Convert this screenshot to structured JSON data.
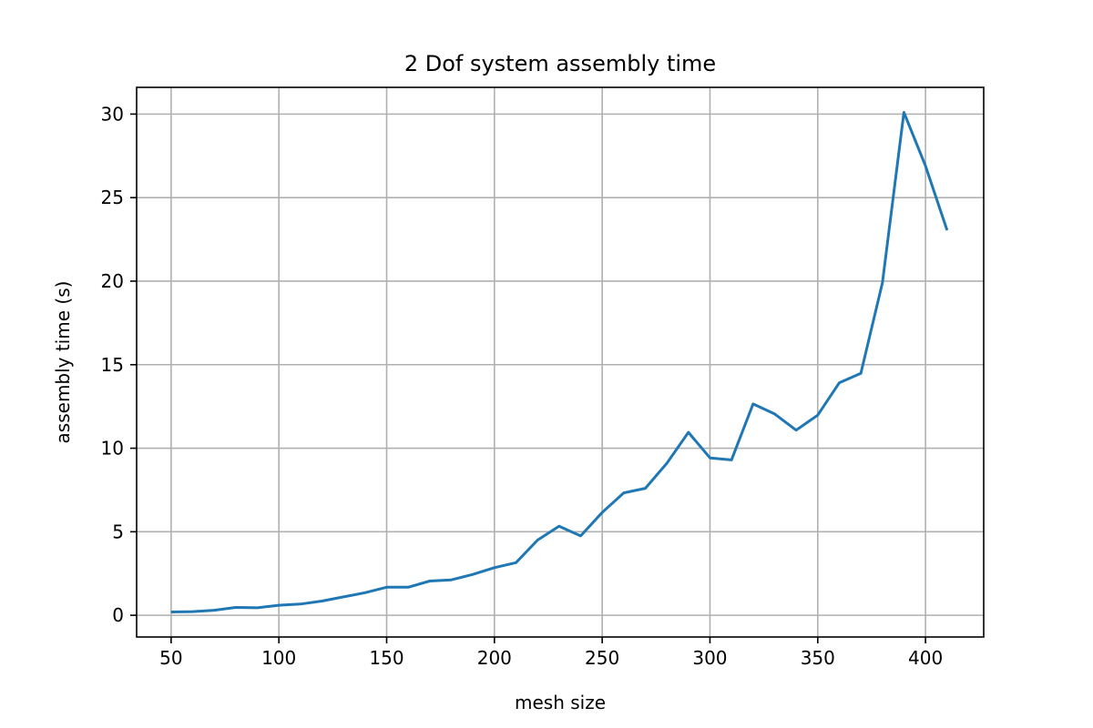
{
  "chart_data": {
    "type": "line",
    "title": "2 Dof system assembly time",
    "xlabel": "mesh size",
    "ylabel": "assembly time (s)",
    "xlim": [
      34,
      427
    ],
    "ylim": [
      -1.3,
      31.6
    ],
    "xticks": [
      50,
      100,
      150,
      200,
      250,
      300,
      350,
      400
    ],
    "yticks": [
      0,
      5,
      10,
      15,
      20,
      25,
      30
    ],
    "grid": true,
    "series": [
      {
        "color": "#1f77b4",
        "x": [
          50,
          60,
          70,
          80,
          90,
          100,
          110,
          120,
          130,
          140,
          150,
          160,
          170,
          180,
          190,
          200,
          210,
          220,
          230,
          240,
          250,
          260,
          270,
          280,
          290,
          300,
          310,
          320,
          330,
          340,
          350,
          360,
          370,
          380,
          390,
          400,
          410
        ],
        "y": [
          0.2,
          0.22,
          0.3,
          0.47,
          0.45,
          0.6,
          0.67,
          0.85,
          1.1,
          1.35,
          1.68,
          1.68,
          2.05,
          2.12,
          2.45,
          2.85,
          3.15,
          4.5,
          5.33,
          4.75,
          6.15,
          7.33,
          7.6,
          9.1,
          10.95,
          9.42,
          9.3,
          12.65,
          12.05,
          11.08,
          11.98,
          13.92,
          14.48,
          19.9,
          30.1,
          26.9,
          23.05
        ]
      }
    ]
  }
}
